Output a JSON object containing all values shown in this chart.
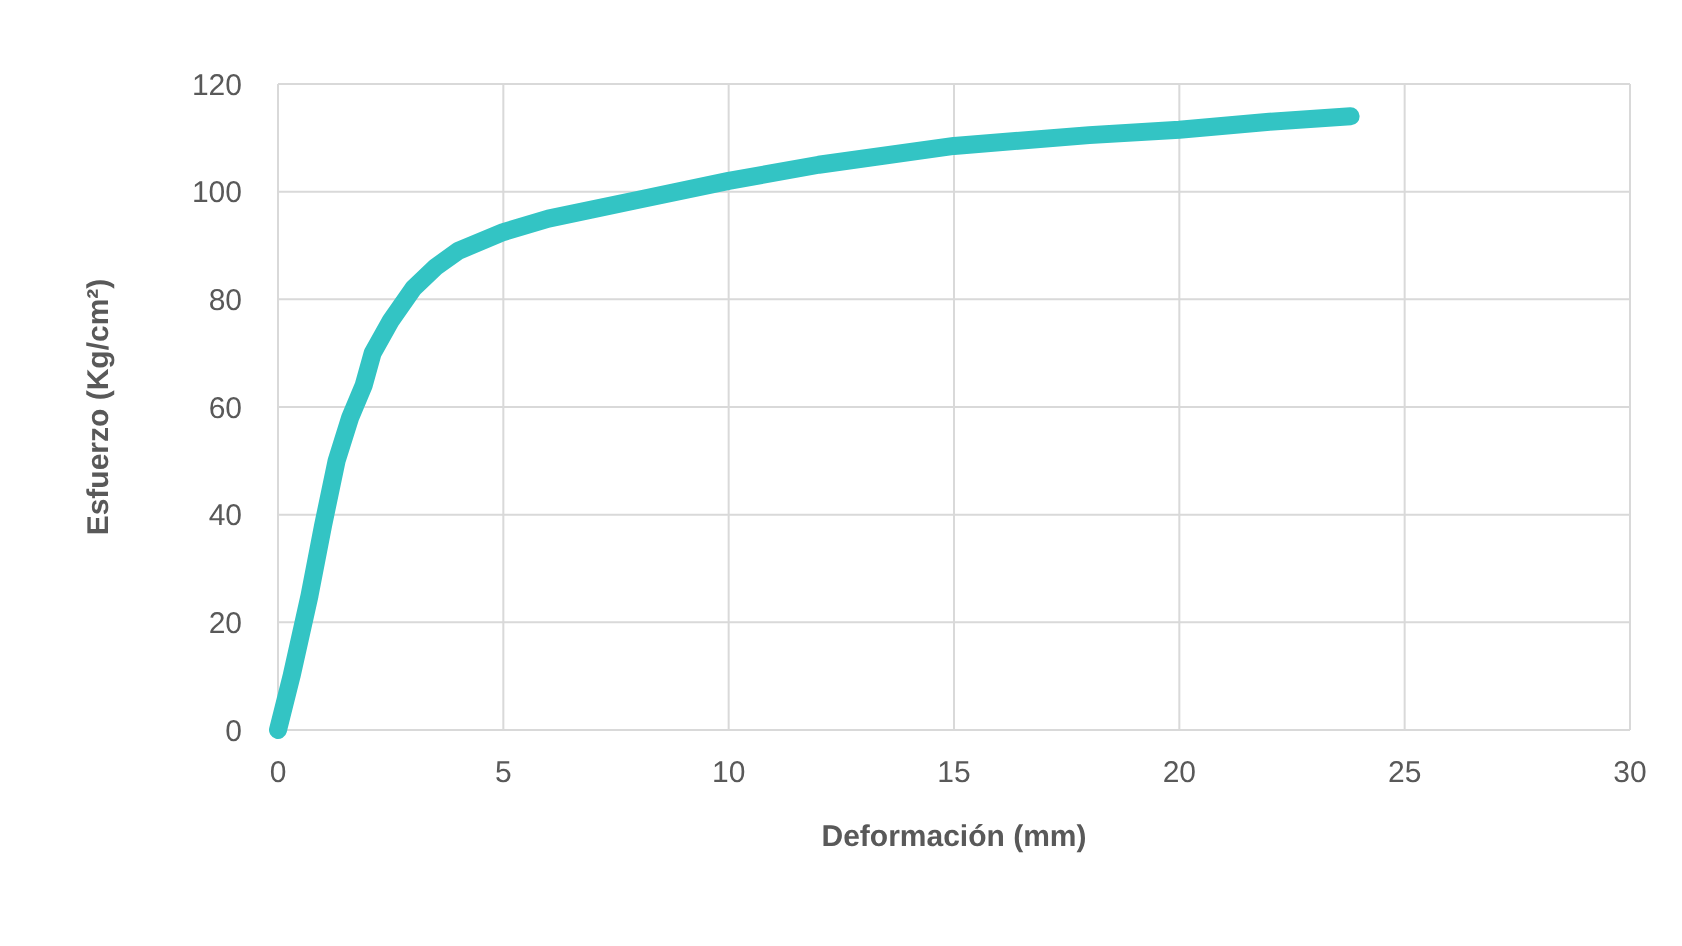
{
  "chart_data": {
    "type": "line",
    "xlabel": "Deformación (mm)",
    "ylabel": "Esfuerzo (Kg/cm²)",
    "x": [
      0,
      0.3,
      0.7,
      1.0,
      1.3,
      1.6,
      1.9,
      2.1,
      2.5,
      3,
      3.5,
      4,
      5,
      6,
      8,
      10,
      12,
      15,
      18,
      20,
      22,
      23.8
    ],
    "series": [
      {
        "color": "#33c4c4",
        "values": [
          0,
          10,
          25,
          38,
          50,
          58,
          64,
          70,
          76,
          82,
          86,
          89,
          92.5,
          95,
          98.5,
          102,
          105,
          108.5,
          110.5,
          111.5,
          113,
          114
        ]
      }
    ],
    "xlim": [
      0,
      30
    ],
    "xticks": [
      0,
      5,
      10,
      15,
      20,
      25,
      30
    ],
    "ylim": [
      0,
      120
    ],
    "yticks": [
      0,
      20,
      40,
      60,
      80,
      100,
      120
    ],
    "grid": true,
    "marker": "none",
    "line_style": "solid"
  }
}
